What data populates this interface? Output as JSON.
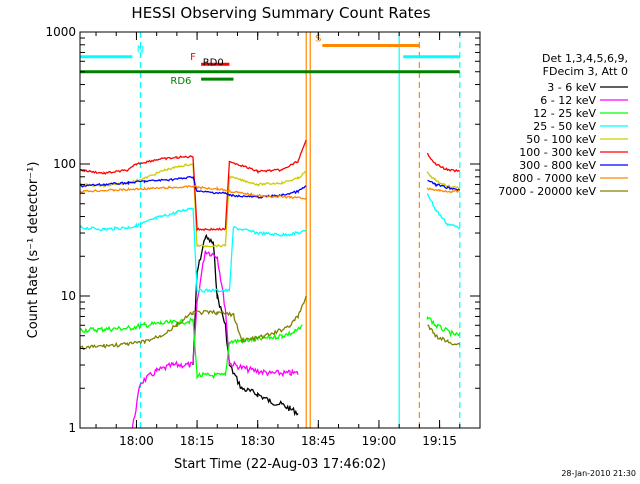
{
  "chart_data": {
    "type": "line",
    "title": "HESSI Observing Summary Count Rates",
    "xlabel": "Start Time (22-Aug-03 17:46:02)",
    "ylabel": "Count Rate (s⁻¹ detector⁻¹)",
    "y_scale": "log",
    "ylim": [
      1,
      1000
    ],
    "xlim": [
      "17:46:02",
      "19:25:00"
    ],
    "x_ticks": [
      "18:00",
      "18:15",
      "18:30",
      "18:45",
      "19:00",
      "19:15"
    ],
    "y_ticks": [
      "1",
      "10",
      "100",
      "1000"
    ],
    "legend_title": [
      "Det 1,3,4,5,6,9,",
      "FDecim 3, Att 0"
    ],
    "legend_placement": "right",
    "footer": "28-Jan-2010 21:30",
    "series": [
      {
        "name": "3 - 6 keV",
        "color": "#000000",
        "x": [
          "18:14",
          "18:15",
          "18:17",
          "18:19",
          "18:20",
          "18:22",
          "18:23",
          "18:26",
          "18:30",
          "18:33",
          "18:36",
          "18:38",
          "18:40"
        ],
        "y": [
          3,
          15,
          28,
          25,
          10,
          6,
          3,
          2,
          1.8,
          1.6,
          1.5,
          1.4,
          1.3
        ]
      },
      {
        "name": "6 - 12 keV",
        "color": "#ff00ff",
        "x": [
          "17:59",
          "18:01",
          "18:05",
          "18:09",
          "18:14",
          "18:15",
          "18:17",
          "18:20",
          "18:22",
          "18:23",
          "18:27",
          "18:33",
          "18:38",
          "18:40"
        ],
        "y": [
          1.0,
          2.2,
          2.7,
          3.0,
          3.0,
          9,
          22,
          20,
          8,
          3.1,
          2.8,
          2.6,
          2.6,
          2.6
        ]
      },
      {
        "name": "12 - 25 keV",
        "color": "#00ff00",
        "x": [
          "17:46",
          "17:52",
          "17:58",
          "18:02",
          "18:06",
          "18:10",
          "18:14",
          "18:15",
          "18:22",
          "18:23",
          "18:30",
          "18:36",
          "18:39",
          "18:41",
          "19:12",
          "19:14",
          "19:18",
          "19:20"
        ],
        "y": [
          5.5,
          5.6,
          5.7,
          6.0,
          6.2,
          6.3,
          6.5,
          2.5,
          2.5,
          4.5,
          4.7,
          5.0,
          5.3,
          5.8,
          7,
          6,
          5.2,
          5.0
        ]
      },
      {
        "name": "25 - 50 keV",
        "color": "#00ffff",
        "x": [
          "17:46",
          "17:52",
          "17:58",
          "18:00",
          "18:05",
          "18:10",
          "18:14",
          "18:15",
          "18:23",
          "18:24",
          "18:30",
          "18:36",
          "18:40",
          "18:42",
          "19:12",
          "19:14",
          "19:17",
          "19:20"
        ],
        "y": [
          33,
          32,
          33,
          34,
          39,
          43,
          47,
          11,
          11,
          33,
          30,
          29,
          30,
          31,
          60,
          45,
          35,
          33
        ]
      },
      {
        "name": "50 - 100 keV",
        "color": "#cccc00",
        "x": [
          "17:46",
          "17:52",
          "17:58",
          "18:02",
          "18:07",
          "18:12",
          "18:14",
          "18:15",
          "18:22",
          "18:23",
          "18:30",
          "18:36",
          "18:40",
          "18:42",
          "19:12",
          "19:14",
          "19:17",
          "19:20"
        ],
        "y": [
          70,
          68,
          72,
          78,
          90,
          98,
          100,
          24,
          24,
          80,
          70,
          72,
          78,
          88,
          85,
          75,
          68,
          66
        ]
      },
      {
        "name": "100 - 300 keV",
        "color": "#ff0000",
        "x": [
          "17:46",
          "17:52",
          "17:58",
          "18:00",
          "18:05",
          "18:10",
          "18:14",
          "18:15",
          "18:22",
          "18:23",
          "18:30",
          "18:36",
          "18:40",
          "18:42",
          "19:12",
          "19:14",
          "19:17",
          "19:20"
        ],
        "y": [
          90,
          85,
          90,
          100,
          108,
          112,
          114,
          32,
          32,
          105,
          88,
          90,
          105,
          150,
          120,
          100,
          90,
          88
        ]
      },
      {
        "name": "300 - 800 keV",
        "color": "#0000ff",
        "x": [
          "17:46",
          "17:52",
          "17:58",
          "18:02",
          "18:08",
          "18:12",
          "18:14",
          "18:15",
          "18:22",
          "18:23",
          "18:30",
          "18:36",
          "18:40",
          "18:42",
          "19:12",
          "19:14",
          "19:17",
          "19:20"
        ],
        "y": [
          68,
          70,
          72,
          74,
          76,
          78,
          80,
          62,
          60,
          58,
          56,
          58,
          62,
          68,
          75,
          70,
          66,
          64
        ]
      },
      {
        "name": "800 - 7000 keV",
        "color": "#ff8800",
        "x": [
          "17:46",
          "17:52",
          "17:58",
          "18:02",
          "18:08",
          "18:12",
          "18:14",
          "18:16",
          "18:20",
          "18:26",
          "18:32",
          "18:38",
          "18:42",
          "19:12",
          "19:15",
          "19:18",
          "19:20"
        ],
        "y": [
          62,
          63,
          64,
          65,
          66,
          67,
          68,
          66,
          65,
          60,
          57,
          56,
          55,
          65,
          63,
          62,
          62
        ]
      },
      {
        "name": "7000 - 20000 keV",
        "color": "#808000",
        "x": [
          "17:46",
          "17:52",
          "17:58",
          "18:02",
          "18:06",
          "18:10",
          "18:14",
          "18:20",
          "18:24",
          "18:26",
          "18:30",
          "18:34",
          "18:38",
          "18:40",
          "18:42",
          "19:12",
          "19:14",
          "19:17",
          "19:20"
        ],
        "y": [
          4.0,
          4.2,
          4.3,
          4.5,
          5.0,
          6.0,
          7.5,
          7.5,
          7.2,
          4.6,
          4.8,
          5.2,
          6.0,
          7.0,
          10,
          6,
          5,
          4.5,
          4.3
        ]
      }
    ],
    "annotations": [
      {
        "label": "N",
        "color": "#00ffff",
        "line_y": 650,
        "line_x": [
          "17:46",
          "17:59",
          "19:06",
          "19:20"
        ],
        "marker_x": "18:01"
      },
      {
        "label": "S",
        "color": "#ff8800",
        "line_y": 790,
        "line_x": [
          "18:46",
          "19:10"
        ],
        "marker_x": "18:45"
      },
      {
        "label": "F",
        "color": "#ff0000",
        "line_y": 570,
        "line_x": [
          "18:16",
          "18:23"
        ],
        "marker_x": "18:14"
      },
      {
        "label": "RD0",
        "color": "#000000",
        "marker_x": "18:19"
      },
      {
        "label": "RD6",
        "color": "#008000",
        "line_y": 440,
        "line_x": [
          "18:16",
          "18:24"
        ],
        "marker_x": "18:11"
      },
      {
        "label": "",
        "color": "#008000",
        "line_y": 500,
        "line_x": [
          "17:46",
          "19:20"
        ]
      }
    ],
    "vertical_markers": [
      {
        "x": "17:46",
        "color": "#00ffff",
        "style": "solid"
      },
      {
        "x": "18:01",
        "color": "#00ffff",
        "style": "dashed"
      },
      {
        "x": "18:42",
        "color": "#ff8800",
        "style": "solid"
      },
      {
        "x": "18:43",
        "color": "#ff8800",
        "style": "solid"
      },
      {
        "x": "19:05",
        "color": "#00ffff",
        "style": "solid"
      },
      {
        "x": "19:10",
        "color": "#ff8800",
        "style": "dashed"
      },
      {
        "x": "19:20",
        "color": "#00ffff",
        "style": "dashed"
      }
    ],
    "grid": false
  }
}
